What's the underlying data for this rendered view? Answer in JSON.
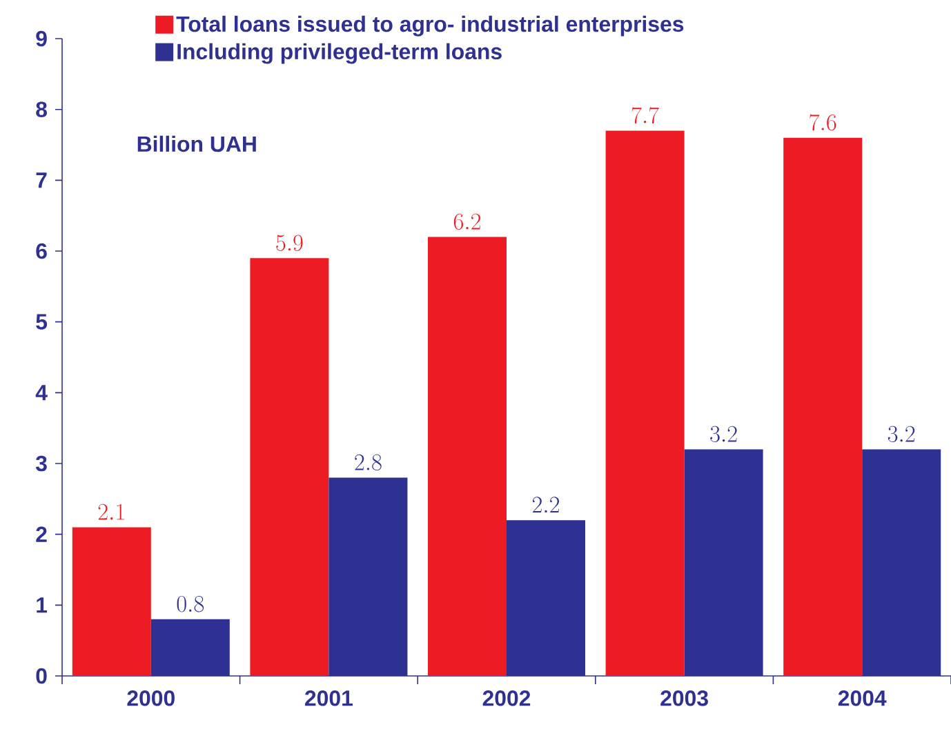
{
  "chart_data": {
    "type": "bar",
    "ylabel": "Billion UAH",
    "categories": [
      "2000",
      "2001",
      "2002",
      "2003",
      "2004"
    ],
    "series": [
      {
        "name": "Total loans issued to agro- industrial enterprises",
        "color": "#ed1c24",
        "values": [
          2.1,
          5.9,
          6.2,
          7.7,
          7.6
        ]
      },
      {
        "name": "Including privileged-term loans",
        "color": "#2e3192",
        "values": [
          0.8,
          2.8,
          2.2,
          3.2,
          3.2
        ]
      }
    ],
    "ylim": [
      0,
      9
    ],
    "yticks": [
      0,
      1,
      2,
      3,
      4,
      5,
      6,
      7,
      8,
      9
    ],
    "data_labels": true,
    "legend": "top left",
    "grid": false
  }
}
